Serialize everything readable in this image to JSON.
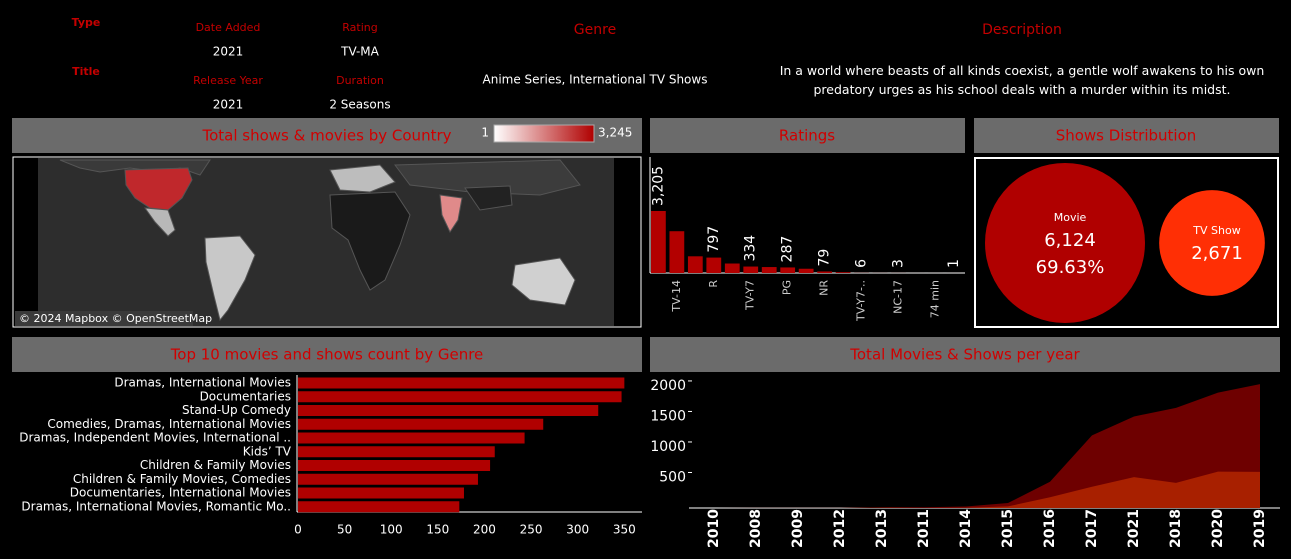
{
  "header": {
    "type_label": "Type",
    "title_label": "Title",
    "date_added_label": "Date Added",
    "date_added": "2021",
    "rating_label": "Rating",
    "rating": "TV-MA",
    "release_year_label": "Release Year",
    "release_year": "2021",
    "duration_label": "Duration",
    "duration": "2 Seasons",
    "genre_label": "Genre",
    "genre": "Anime Series, International TV Shows",
    "description_label": "Description",
    "description": "In a world where beasts of all kinds coexist, a gentle wolf awakens to his own predatory urges as his school deals with a murder within its midst."
  },
  "chart_data": [
    {
      "type": "map",
      "title": "Total shows & movies by Country",
      "legend": {
        "min": 1,
        "max": {
          "value": 3245,
          "label": "3,245"
        }
      },
      "credit": "© 2024 Mapbox © OpenStreetMap"
    },
    {
      "type": "bar",
      "title": "Ratings",
      "color": "#b30000",
      "categories": [
        null,
        "TV-14",
        null,
        "R",
        null,
        "TV-Y7",
        null,
        "PG",
        null,
        "NR",
        null,
        "TV-Y7-..",
        null,
        "NC-17",
        null,
        "74 min",
        null
      ],
      "values": [
        3205,
        2160,
        863,
        797,
        490,
        334,
        307,
        287,
        220,
        79,
        41,
        6,
        3,
        3,
        1,
        1,
        1
      ],
      "value_labels": [
        "3,205",
        null,
        null,
        "797",
        null,
        "334",
        null,
        "287",
        null,
        "79",
        null,
        "6",
        null,
        "3",
        null,
        null,
        "1"
      ]
    },
    {
      "type": "bubble",
      "title": "Shows Distribution",
      "categories": [
        "Movie",
        "TV Show"
      ],
      "values": [
        6124,
        2671
      ],
      "value_labels": [
        "6,124",
        "2,671"
      ],
      "colors": [
        "#b00000",
        "#ff2f05"
      ],
      "shares": [
        {
          "value": 69.63,
          "label": "69.63%"
        },
        null
      ]
    },
    {
      "type": "hbar",
      "title": "Top 10 movies and shows count by Genre",
      "color": "#b00000",
      "categories": [
        "Dramas, International Movies",
        "Documentaries",
        "Stand-Up Comedy",
        "Comedies, Dramas, International Movies",
        "Dramas, Independent Movies, International ..",
        "Kids’ TV",
        "Children & Family Movies",
        "Children & Family Movies, Comedies",
        "Documentaries, International Movies",
        "Dramas, International Movies, Romantic Mo.."
      ],
      "values": [
        350,
        347,
        322,
        263,
        243,
        211,
        206,
        193,
        178,
        173
      ],
      "xlim": [
        0,
        370
      ],
      "xticks": [
        0,
        50,
        100,
        150,
        200,
        250,
        300,
        350
      ]
    },
    {
      "type": "area",
      "title": "Total Movies & Shows per year",
      "categories": [
        "2010",
        "2008",
        "2009",
        "2012",
        "2013",
        "2011",
        "2014",
        "2015",
        "2016",
        "2017",
        "2021",
        "2018",
        "2020",
        "2019"
      ],
      "series": [
        {
          "color": "#6e0000",
          "values": [
            1,
            2,
            2,
            3,
            11,
            13,
            24,
            82,
            430,
            1190,
            1500,
            1640,
            1890,
            2030
          ]
        },
        {
          "color": "#a82000",
          "values": [
            0,
            1,
            0,
            0,
            5,
            0,
            5,
            26,
            176,
            349,
            505,
            412,
            595,
            592
          ]
        }
      ],
      "ylim": [
        0,
        2130
      ],
      "yticks": [
        500,
        1000,
        1500,
        2000
      ]
    }
  ]
}
